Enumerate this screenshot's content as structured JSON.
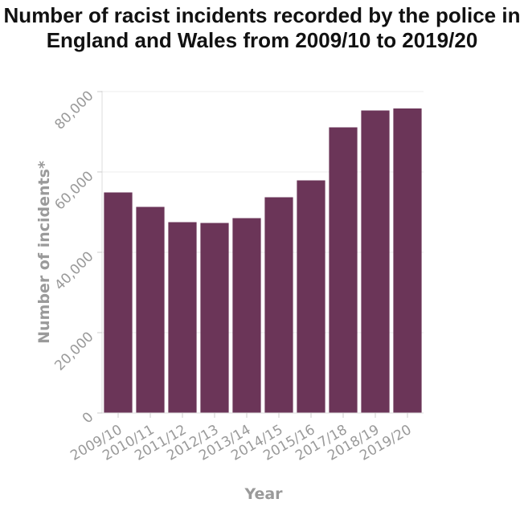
{
  "chart_data": {
    "type": "bar",
    "title": "Number of racist incidents recorded by the police in England and Wales from 2009/10 to 2019/20",
    "xlabel": "Year",
    "ylabel": "Number of incidents*",
    "categories": [
      "2009/10",
      "2010/11",
      "2011/12",
      "2012/13",
      "2013/14",
      "2014/15",
      "2015/16",
      "2017/18",
      "2018/19",
      "2019/20"
    ],
    "values": [
      54900,
      51300,
      47500,
      47300,
      48500,
      53700,
      57900,
      71100,
      75300,
      75800
    ],
    "ylim": [
      0,
      80000
    ],
    "yticks": [
      0,
      20000,
      40000,
      60000,
      80000
    ],
    "ytick_labels": [
      "0",
      "20,000",
      "40,000",
      "60,000",
      "80,000"
    ],
    "bar_color": "#6b3558",
    "grid": true
  }
}
